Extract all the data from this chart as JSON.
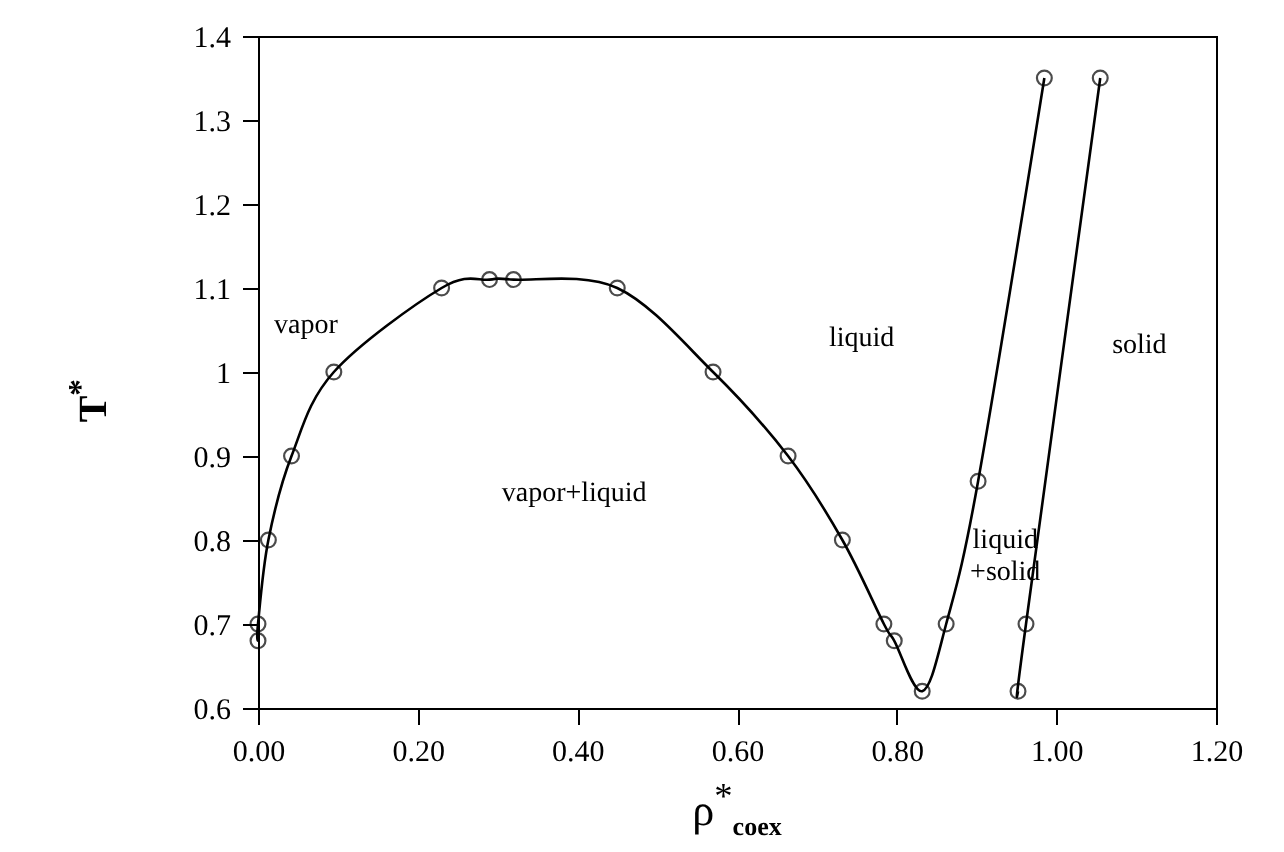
{
  "chart_data": {
    "type": "line",
    "xlabel": "ρ$^{*}$$_{coex}$",
    "ylabel": "T$^{*}$",
    "xlim": [
      0,
      1.2
    ],
    "ylim": [
      0.6,
      1.4
    ],
    "xticks": [
      {
        "value": 0,
        "label": "0.00"
      },
      {
        "value": 0.2,
        "label": "0.20"
      },
      {
        "value": 0.4,
        "label": "0.40"
      },
      {
        "value": 0.6,
        "label": "0.60"
      },
      {
        "value": 0.8,
        "label": "0.80"
      },
      {
        "value": 1.0,
        "label": "1.00"
      },
      {
        "value": 1.2,
        "label": "1.20"
      }
    ],
    "yticks": [
      0.6,
      0.7,
      0.8,
      0.9,
      1,
      1.1,
      1.2,
      1.3,
      1.4
    ],
    "marker": "circle",
    "line_style": "solid",
    "grid": false,
    "series": [
      {
        "color": "#000000",
        "x": [
          0.0,
          0.0,
          0.013,
          0.042,
          0.095,
          0.23,
          0.29,
          0.32,
          0.45,
          0.57,
          0.664,
          0.732,
          0.784,
          0.797,
          0.832,
          0.862,
          0.902,
          0.985
        ],
        "values": [
          0.68,
          0.7,
          0.8,
          0.9,
          1.0,
          1.1,
          1.11,
          1.11,
          1.1,
          1.0,
          0.9,
          0.8,
          0.7,
          0.68,
          0.62,
          0.7,
          0.87,
          1.35
        ]
      },
      {
        "color": "#000000",
        "x": [
          0.952,
          0.962,
          1.055
        ],
        "values": [
          0.62,
          0.7,
          1.35
        ]
      }
    ],
    "annotations": [
      "vapor",
      "vapor+liquid",
      "liquid",
      "liquid\n+solid",
      "solid"
    ]
  }
}
